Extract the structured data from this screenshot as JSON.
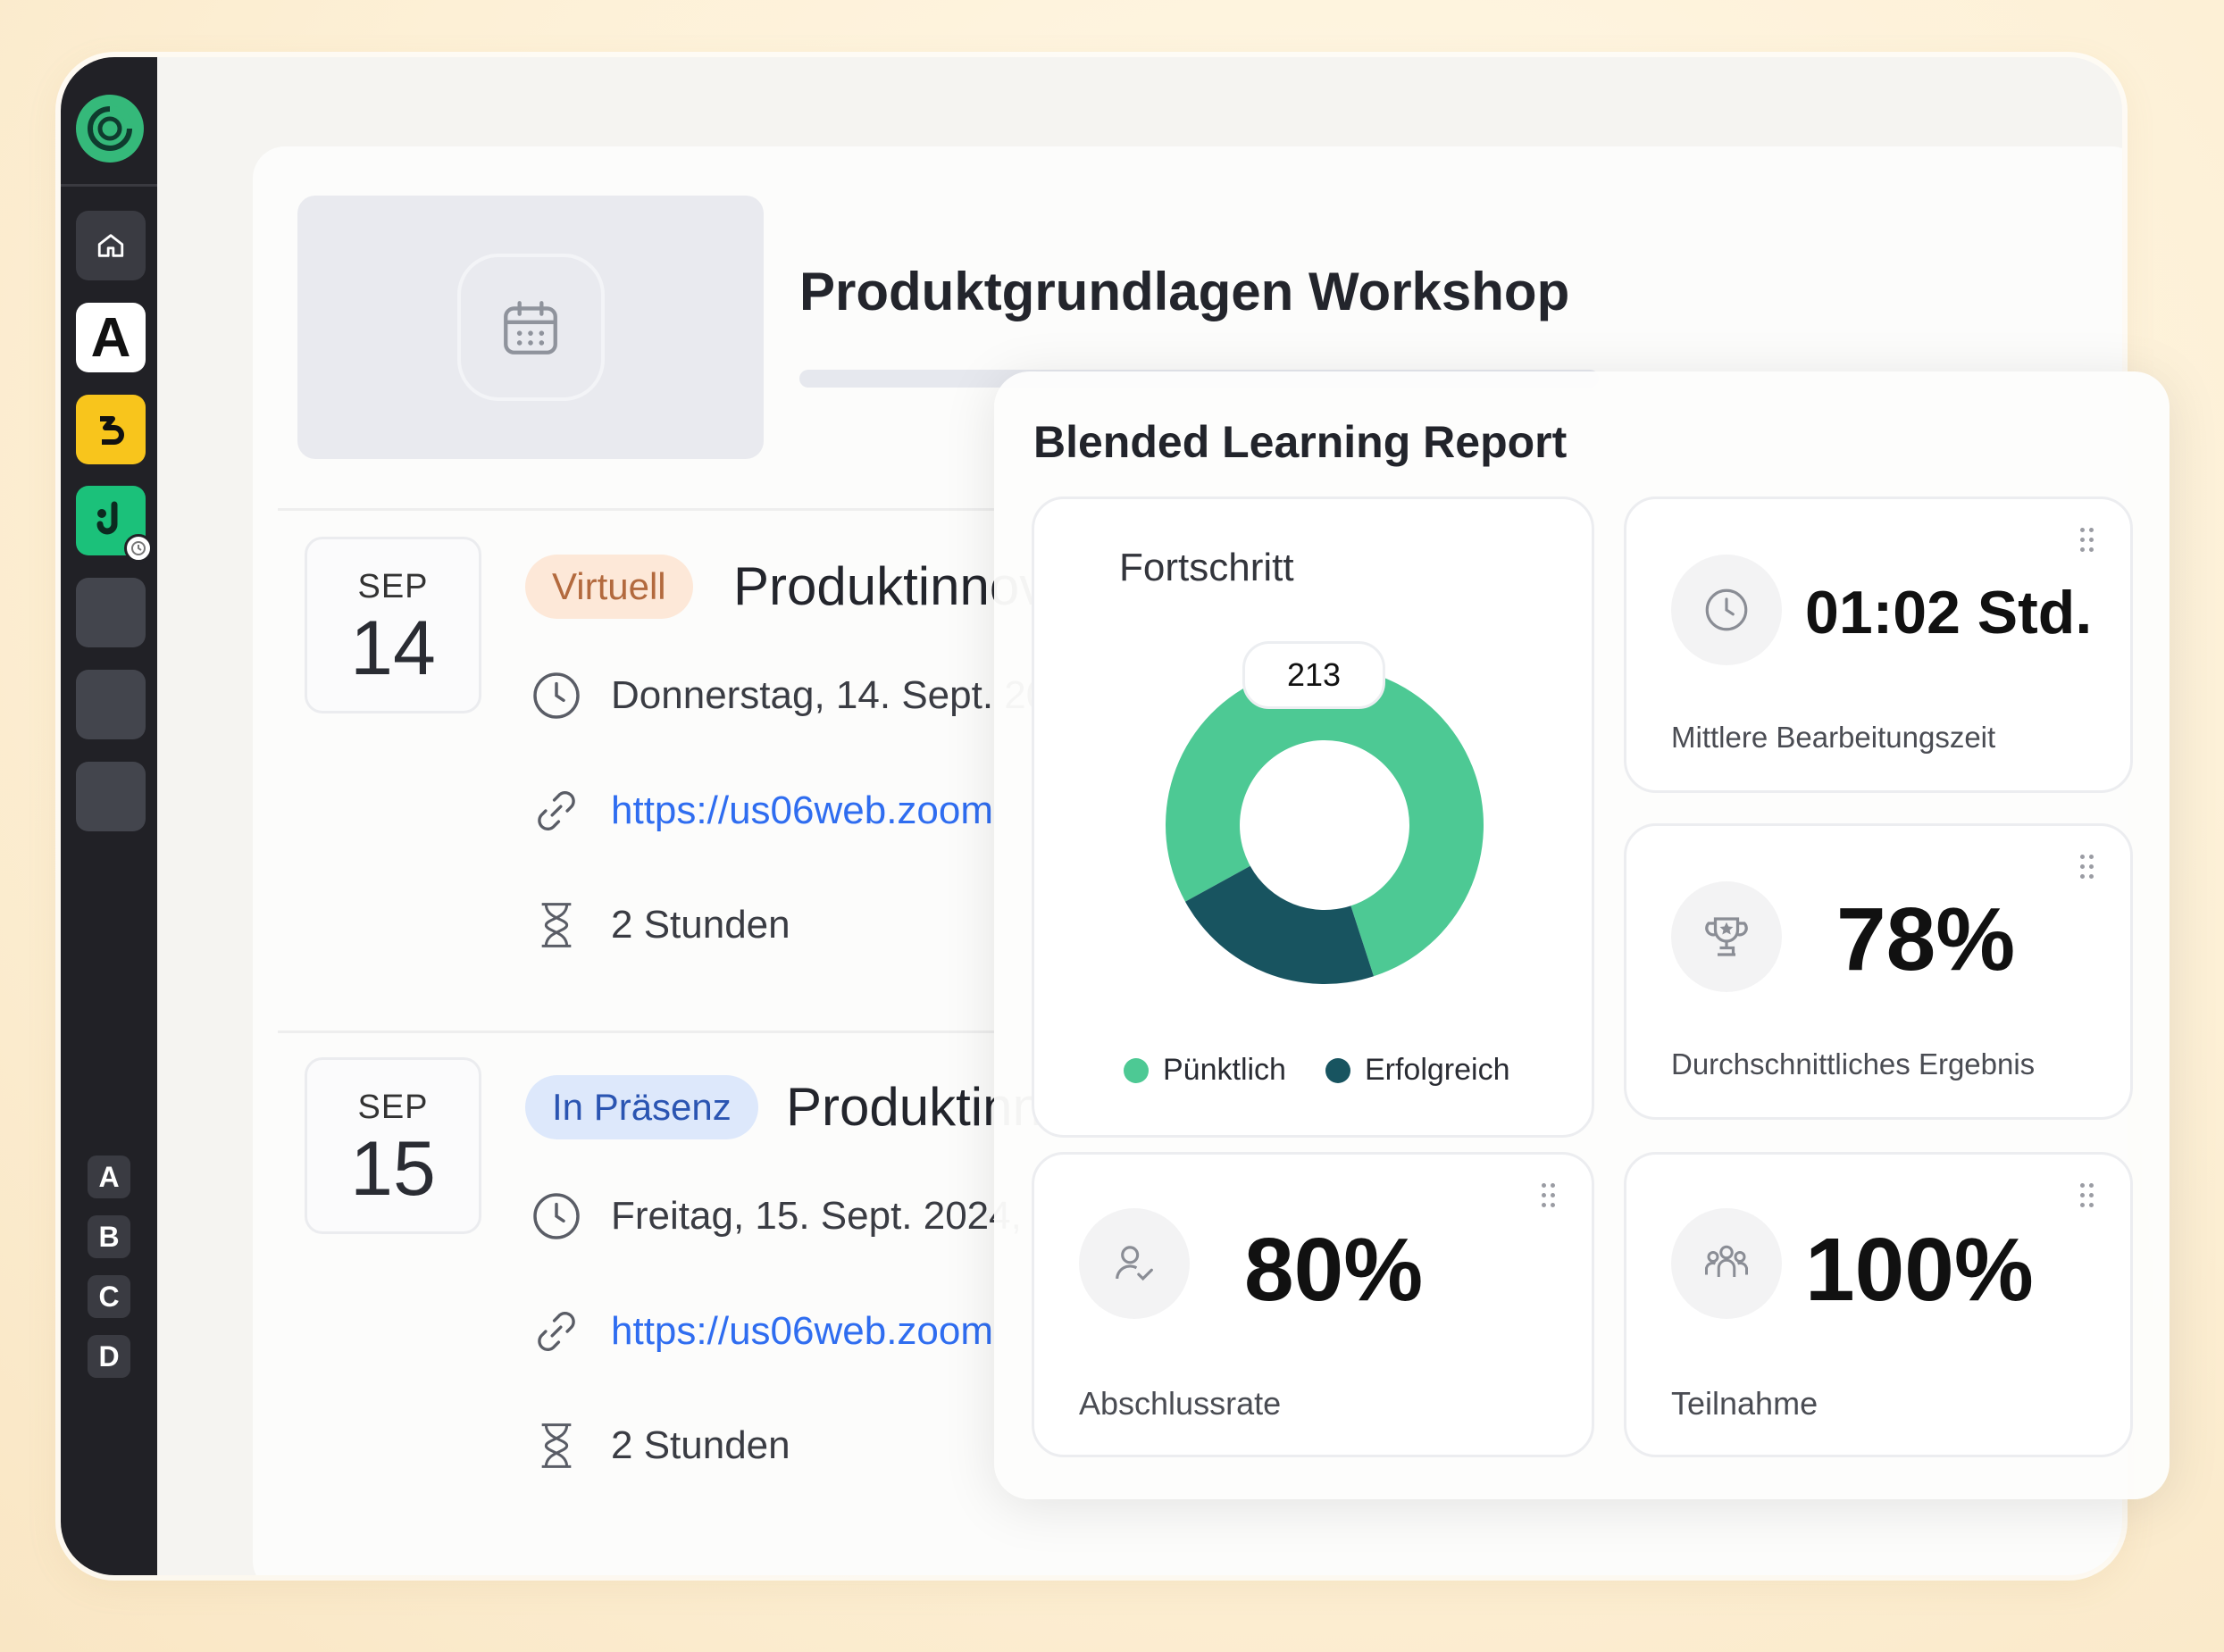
{
  "sidebar": {
    "app_button_a": "A",
    "letters": [
      "A",
      "B",
      "C",
      "D"
    ]
  },
  "course": {
    "title": "Produktgrundlagen Workshop"
  },
  "sessions": [
    {
      "month": "SEP",
      "day": "14",
      "badge": "Virtuell",
      "title": "Produktinnov",
      "date_text": "Donnerstag, 14. Sept. 20",
      "link": "https://us06web.zoom",
      "duration": "2 Stunden"
    },
    {
      "month": "SEP",
      "day": "15",
      "badge": "In Präsenz",
      "title": "Produktinn",
      "date_text": "Freitag, 15. Sept. 2024,",
      "link": "https://us06web.zoom",
      "duration": "2 Stunden"
    }
  ],
  "report": {
    "title": "Blended Learning Report",
    "metrics": {
      "time": {
        "value": "01:02 Std.",
        "label": "Mittlere Bearbeitungszeit",
        "icon": "clock-icon"
      },
      "score": {
        "value": "78%",
        "label": "Durchschnittliches Ergebnis",
        "icon": "trophy-icon"
      },
      "completion": {
        "value": "80%",
        "label": "Abschlussrate",
        "icon": "user-check-icon"
      },
      "participation": {
        "value": "100%",
        "label": "Teilnahme",
        "icon": "group-icon"
      }
    }
  },
  "chart_data": {
    "type": "pie",
    "title": "Fortschritt",
    "center_label": "213",
    "series": [
      {
        "name": "Pünktlich",
        "value": 0.78,
        "color": "#4dc994"
      },
      {
        "name": "Erfolgreich",
        "value": 0.22,
        "color": "#185460"
      }
    ],
    "legend_position": "bottom"
  }
}
